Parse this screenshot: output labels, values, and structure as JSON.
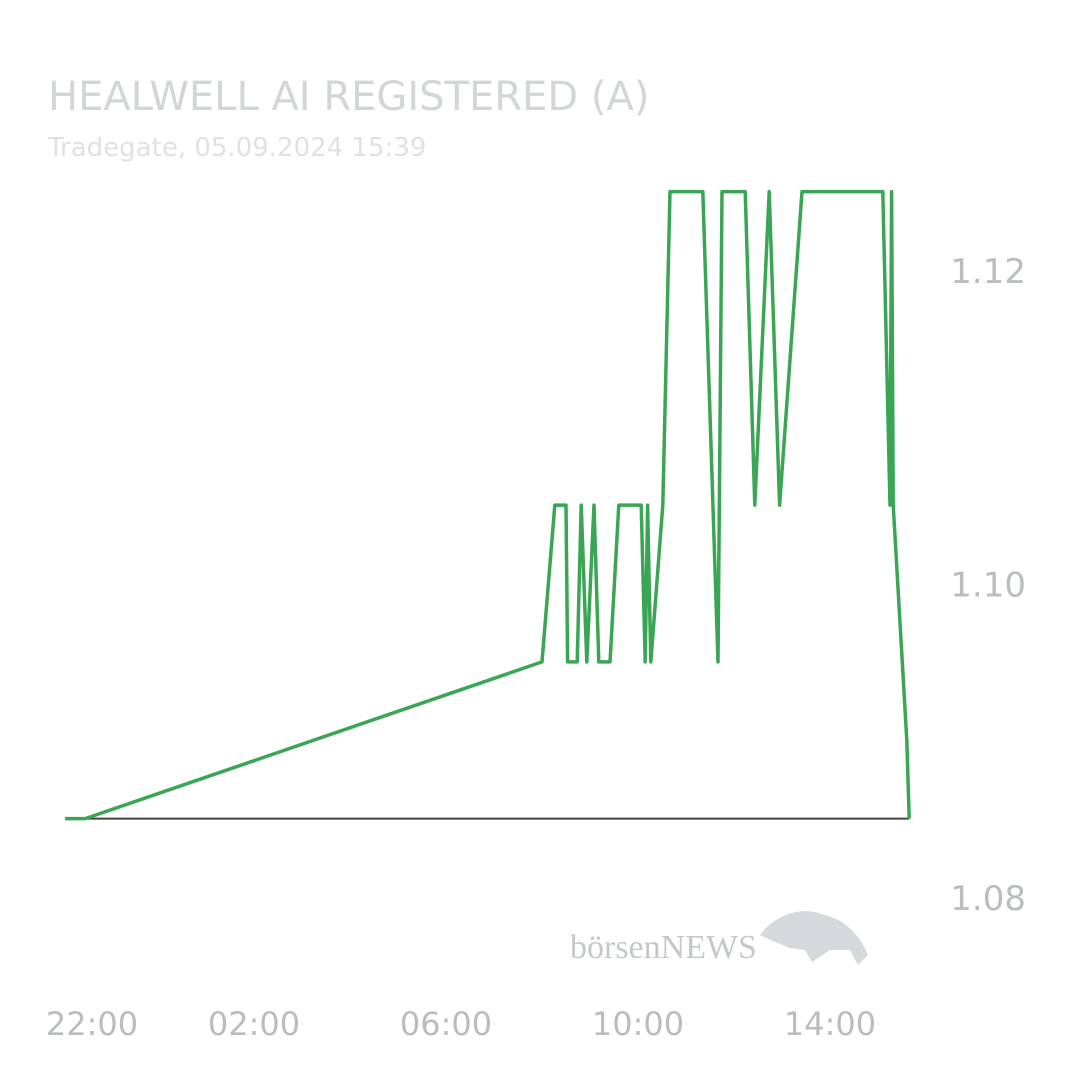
{
  "chart_data": {
    "type": "line",
    "title": "HEALWELL AI REGISTERED (A)",
    "subtitle": "Tradegate, 05.09.2024 15:39",
    "watermark": "börsenNEWS",
    "x": [
      "22:04",
      "22:29",
      "08:00",
      "08:16",
      "08:30",
      "08:32",
      "08:44",
      "08:49",
      "08:56",
      "09:05",
      "09:11",
      "09:25",
      "09:36",
      "10:04",
      "10:09",
      "10:12",
      "10:16",
      "10:31",
      "10:40",
      "11:21",
      "11:40",
      "11:45",
      "12:14",
      "12:26",
      "12:44",
      "12:57",
      "13:25",
      "15:06",
      "15:15",
      "15:17",
      "15:19",
      "15:36",
      "15:39"
    ],
    "series": [
      {
        "name": "HEALWELL AI",
        "color": "#3aa655",
        "values": [
          1.085,
          1.085,
          1.095,
          1.105,
          1.105,
          1.095,
          1.095,
          1.105,
          1.095,
          1.105,
          1.095,
          1.095,
          1.105,
          1.105,
          1.095,
          1.105,
          1.095,
          1.105,
          1.125,
          1.125,
          1.095,
          1.125,
          1.125,
          1.105,
          1.125,
          1.105,
          1.125,
          1.125,
          1.105,
          1.125,
          1.105,
          1.09,
          1.085
        ]
      }
    ],
    "baseline": 1.085,
    "ylim": [
      1.075,
      1.13
    ],
    "yticks": [
      {
        "value": 1.08,
        "label": "1.08"
      },
      {
        "value": 1.1,
        "label": "1.10"
      },
      1.12
    ],
    "xticks": [
      "22:00",
      "02:00",
      "06:00",
      "10:00",
      "14:00"
    ]
  }
}
